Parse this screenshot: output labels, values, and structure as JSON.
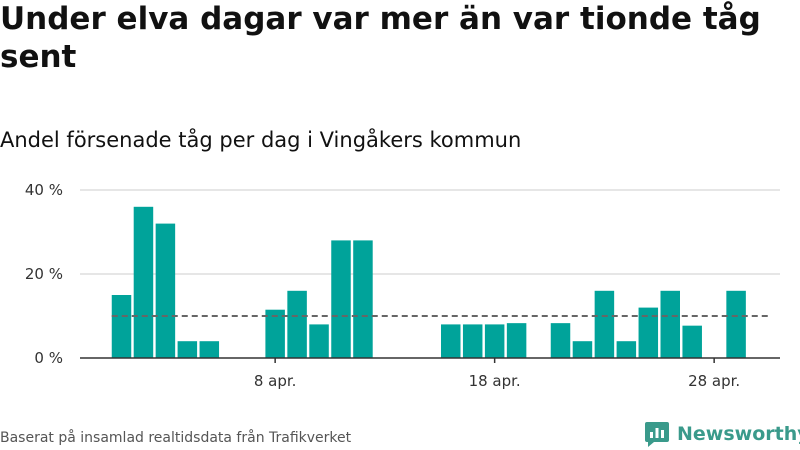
{
  "header": {
    "title": "Under elva dagar var mer än var tionde tåg sent",
    "subtitle": "Andel försenade tåg per dag i Vingåkers kommun"
  },
  "footer": {
    "source": "Baserat på insamlad realtidsdata från Trafikverket",
    "brand": "Newsworthy"
  },
  "colors": {
    "bar": "#00a39a",
    "reference_line": "#666666",
    "grid": "#dddddd",
    "brand": "#3a9a8b"
  },
  "chart_data": {
    "type": "bar",
    "x_start_day": 1,
    "x_end_day": 30,
    "values": [
      15,
      36,
      32,
      4,
      4,
      null,
      null,
      11.5,
      16,
      8,
      28,
      28,
      null,
      null,
      null,
      8,
      8,
      8,
      8.3,
      null,
      8.3,
      4,
      16,
      4,
      12,
      16,
      7.7,
      null,
      16,
      null
    ],
    "reference_value": 10,
    "ylim": [
      0,
      40
    ],
    "yticks": [
      {
        "value": 0,
        "label": "0 %"
      },
      {
        "value": 20,
        "label": "20 %"
      },
      {
        "value": 40,
        "label": "40 %"
      }
    ],
    "xticks": [
      {
        "day": 8,
        "label": "8 apr."
      },
      {
        "day": 18,
        "label": "18 apr."
      },
      {
        "day": 28,
        "label": "28 apr."
      }
    ]
  }
}
